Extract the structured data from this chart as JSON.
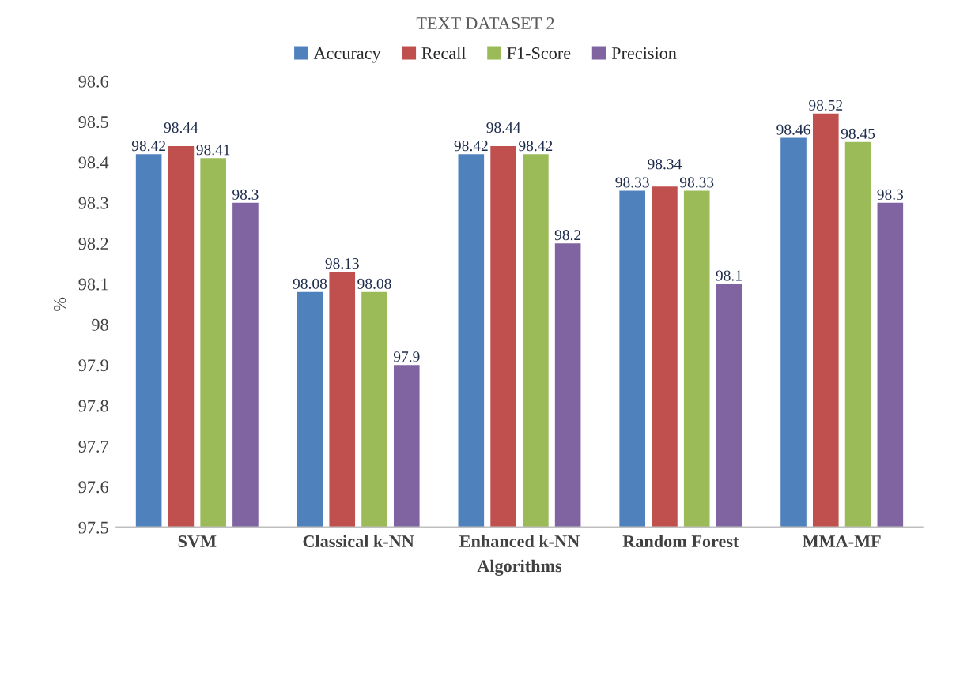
{
  "chart_data": {
    "type": "bar",
    "title": "TEXT DATASET 2",
    "xlabel": "Algorithms",
    "ylabel": "%",
    "categories": [
      "SVM",
      "Classical k-NN",
      "Enhanced k-NN",
      "Random Forest",
      "MMA-MF"
    ],
    "series": [
      {
        "name": "Accuracy",
        "color": "#4f81bd",
        "values": [
          98.42,
          98.08,
          98.42,
          98.33,
          98.46
        ]
      },
      {
        "name": "Recall",
        "color": "#c0504d",
        "values": [
          98.44,
          98.13,
          98.44,
          98.34,
          98.52
        ]
      },
      {
        "name": "F1-Score",
        "color": "#9bbb59",
        "values": [
          98.41,
          98.08,
          98.42,
          98.33,
          98.45
        ]
      },
      {
        "name": "Precision",
        "color": "#8064a2",
        "values": [
          98.3,
          97.9,
          98.2,
          98.1,
          98.3
        ]
      }
    ],
    "ylim": [
      97.5,
      98.6
    ],
    "yticks": [
      97.5,
      97.6,
      97.7,
      97.8,
      97.9,
      98,
      98.1,
      98.2,
      98.3,
      98.4,
      98.5,
      98.6
    ],
    "data_labels": true,
    "legend": "top",
    "grid": false
  }
}
